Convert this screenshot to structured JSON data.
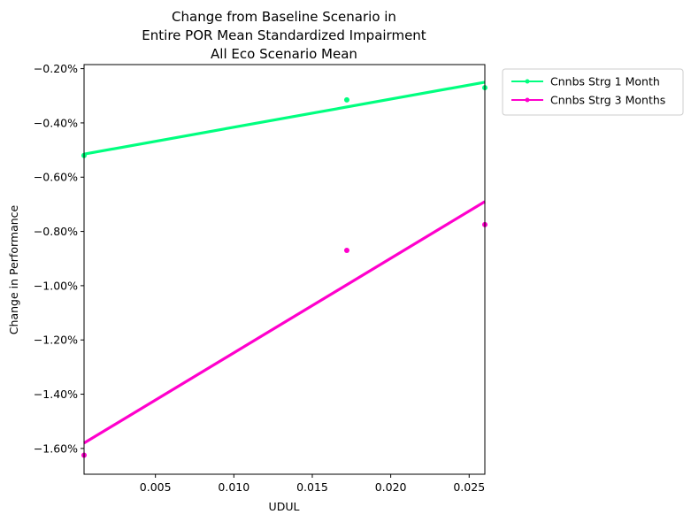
{
  "chart_data": {
    "type": "scatter",
    "title_lines": [
      "Change from Baseline Scenario in",
      "Entire POR Mean Standardized Impairment",
      "All Eco Scenario Mean"
    ],
    "xlabel": "UDUL",
    "ylabel": "Change in Performance",
    "xlim": [
      0.00045,
      0.026
    ],
    "ylim": [
      -1.695,
      -0.185
    ],
    "x_ticks": [
      0.005,
      0.01,
      0.015,
      0.02,
      0.025
    ],
    "x_tick_labels": [
      "0.005",
      "0.010",
      "0.015",
      "0.020",
      "0.025"
    ],
    "y_ticks": [
      -0.2,
      -0.4,
      -0.6,
      -0.8,
      -1.0,
      -1.2,
      -1.4,
      -1.6
    ],
    "y_tick_labels": [
      "−0.20%",
      "−0.40%",
      "−0.60%",
      "−0.80%",
      "−1.00%",
      "−1.20%",
      "−1.40%",
      "−1.60%"
    ],
    "grid": false,
    "legend_position": "outside-top-right",
    "series": [
      {
        "name": "Cnnbs Strg 1 Month",
        "color": "#00ff7f",
        "x": [
          0.00045,
          0.0172,
          0.026
        ],
        "y": [
          -0.52,
          -0.315,
          -0.27
        ],
        "trend": {
          "x": [
            0.00045,
            0.026
          ],
          "y": [
            -0.515,
            -0.25
          ]
        }
      },
      {
        "name": "Cnnbs Strg 3 Months",
        "color": "#ff00cc",
        "x": [
          0.00045,
          0.0172,
          0.026
        ],
        "y": [
          -1.625,
          -0.87,
          -0.775
        ],
        "trend": {
          "x": [
            0.00045,
            0.026
          ],
          "y": [
            -1.58,
            -0.69
          ]
        }
      }
    ]
  }
}
